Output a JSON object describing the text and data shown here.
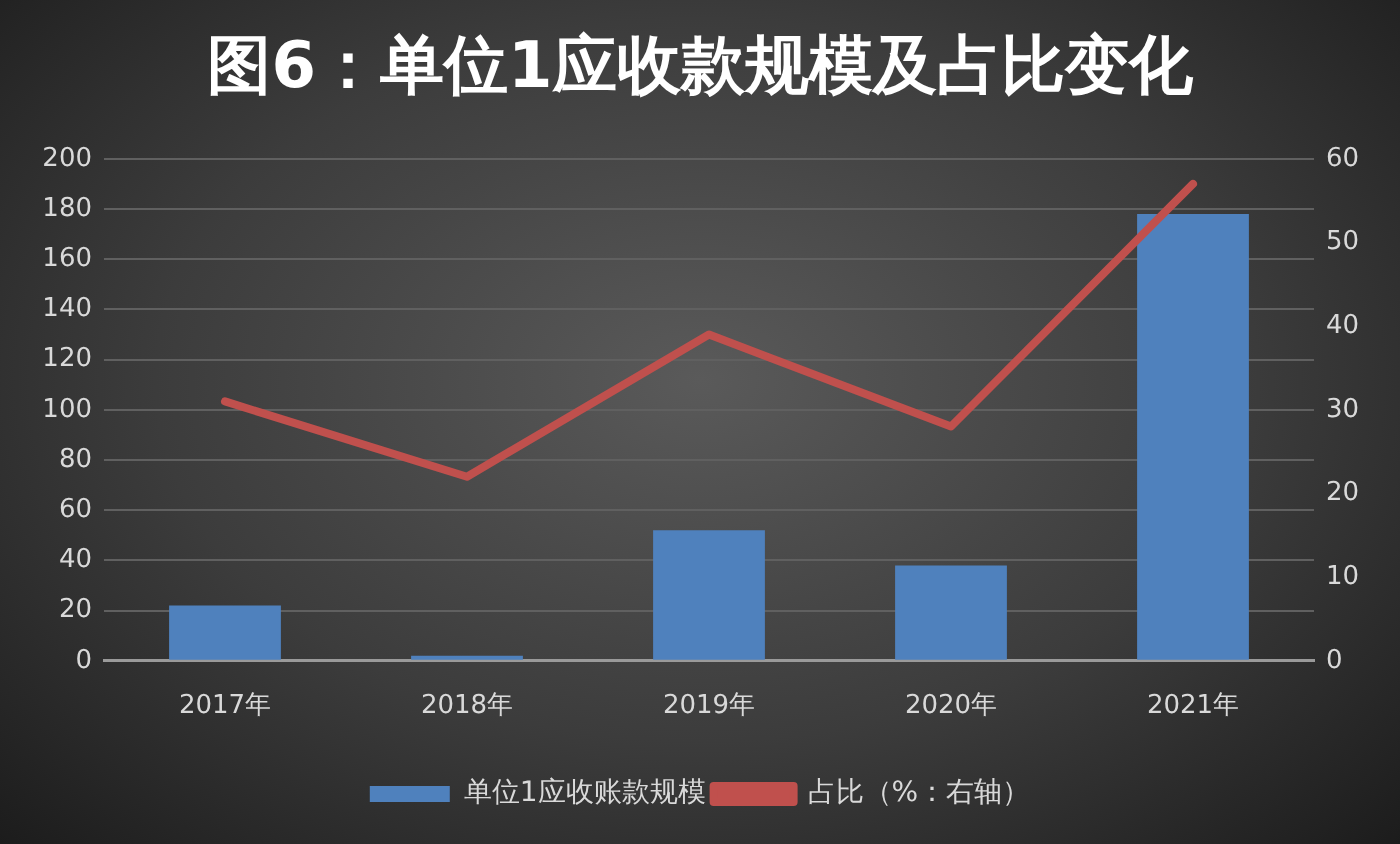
{
  "chart_data": {
    "type": "bar",
    "title": "图6：单位1应收款规模及占比变化",
    "categories": [
      "2017年",
      "2018年",
      "2019年",
      "2020年",
      "2021年"
    ],
    "series": [
      {
        "name": "单位1应收账款规模",
        "color": "#4f81bd",
        "values": [
          22,
          2,
          52,
          38,
          178
        ]
      },
      {
        "name": "占比（%：右轴）",
        "type": "line",
        "axis": "y2",
        "color": "#c0504d",
        "values": [
          31,
          22,
          39,
          28,
          57
        ]
      }
    ],
    "ylim": [
      0,
      200
    ],
    "yticks": [
      0,
      20,
      40,
      60,
      80,
      100,
      120,
      140,
      160,
      180,
      200
    ],
    "y2lim": [
      0,
      60
    ],
    "y2ticks": [
      0,
      10,
      20,
      30,
      40,
      50,
      60
    ],
    "grid": "y",
    "legend": "bottom",
    "marker": "none"
  }
}
